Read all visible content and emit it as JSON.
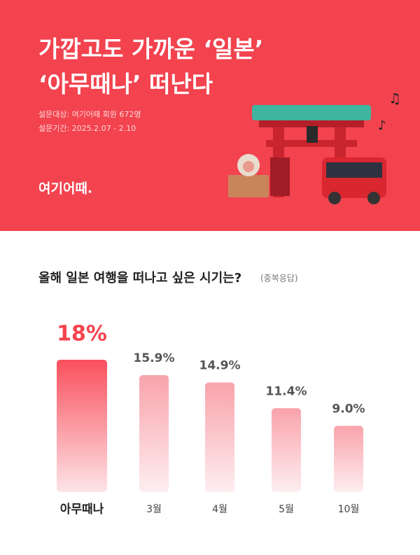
{
  "header": {
    "title_lines": [
      "가깝고도 가까운 ‘일본’",
      "‘아무때나’ 떠난다"
    ],
    "meta": [
      "설문대상: 여기어때 회원 672명",
      "설문기간: 2025.2.07 - 2.10"
    ],
    "logo": "여기어때."
  },
  "chart_data": {
    "type": "bar",
    "title": "올해 일본 여행을 떠나고 싶은 시기는?",
    "subtitle": "(중복응답)",
    "categories": [
      "아무때나",
      "3월",
      "4월",
      "5월",
      "10월"
    ],
    "values": [
      18,
      15.9,
      14.9,
      11.4,
      9.0
    ],
    "value_labels": [
      "18%",
      "15.9%",
      "14.9%",
      "11.4%",
      "9.0%"
    ],
    "color": "#f5444f"
  }
}
